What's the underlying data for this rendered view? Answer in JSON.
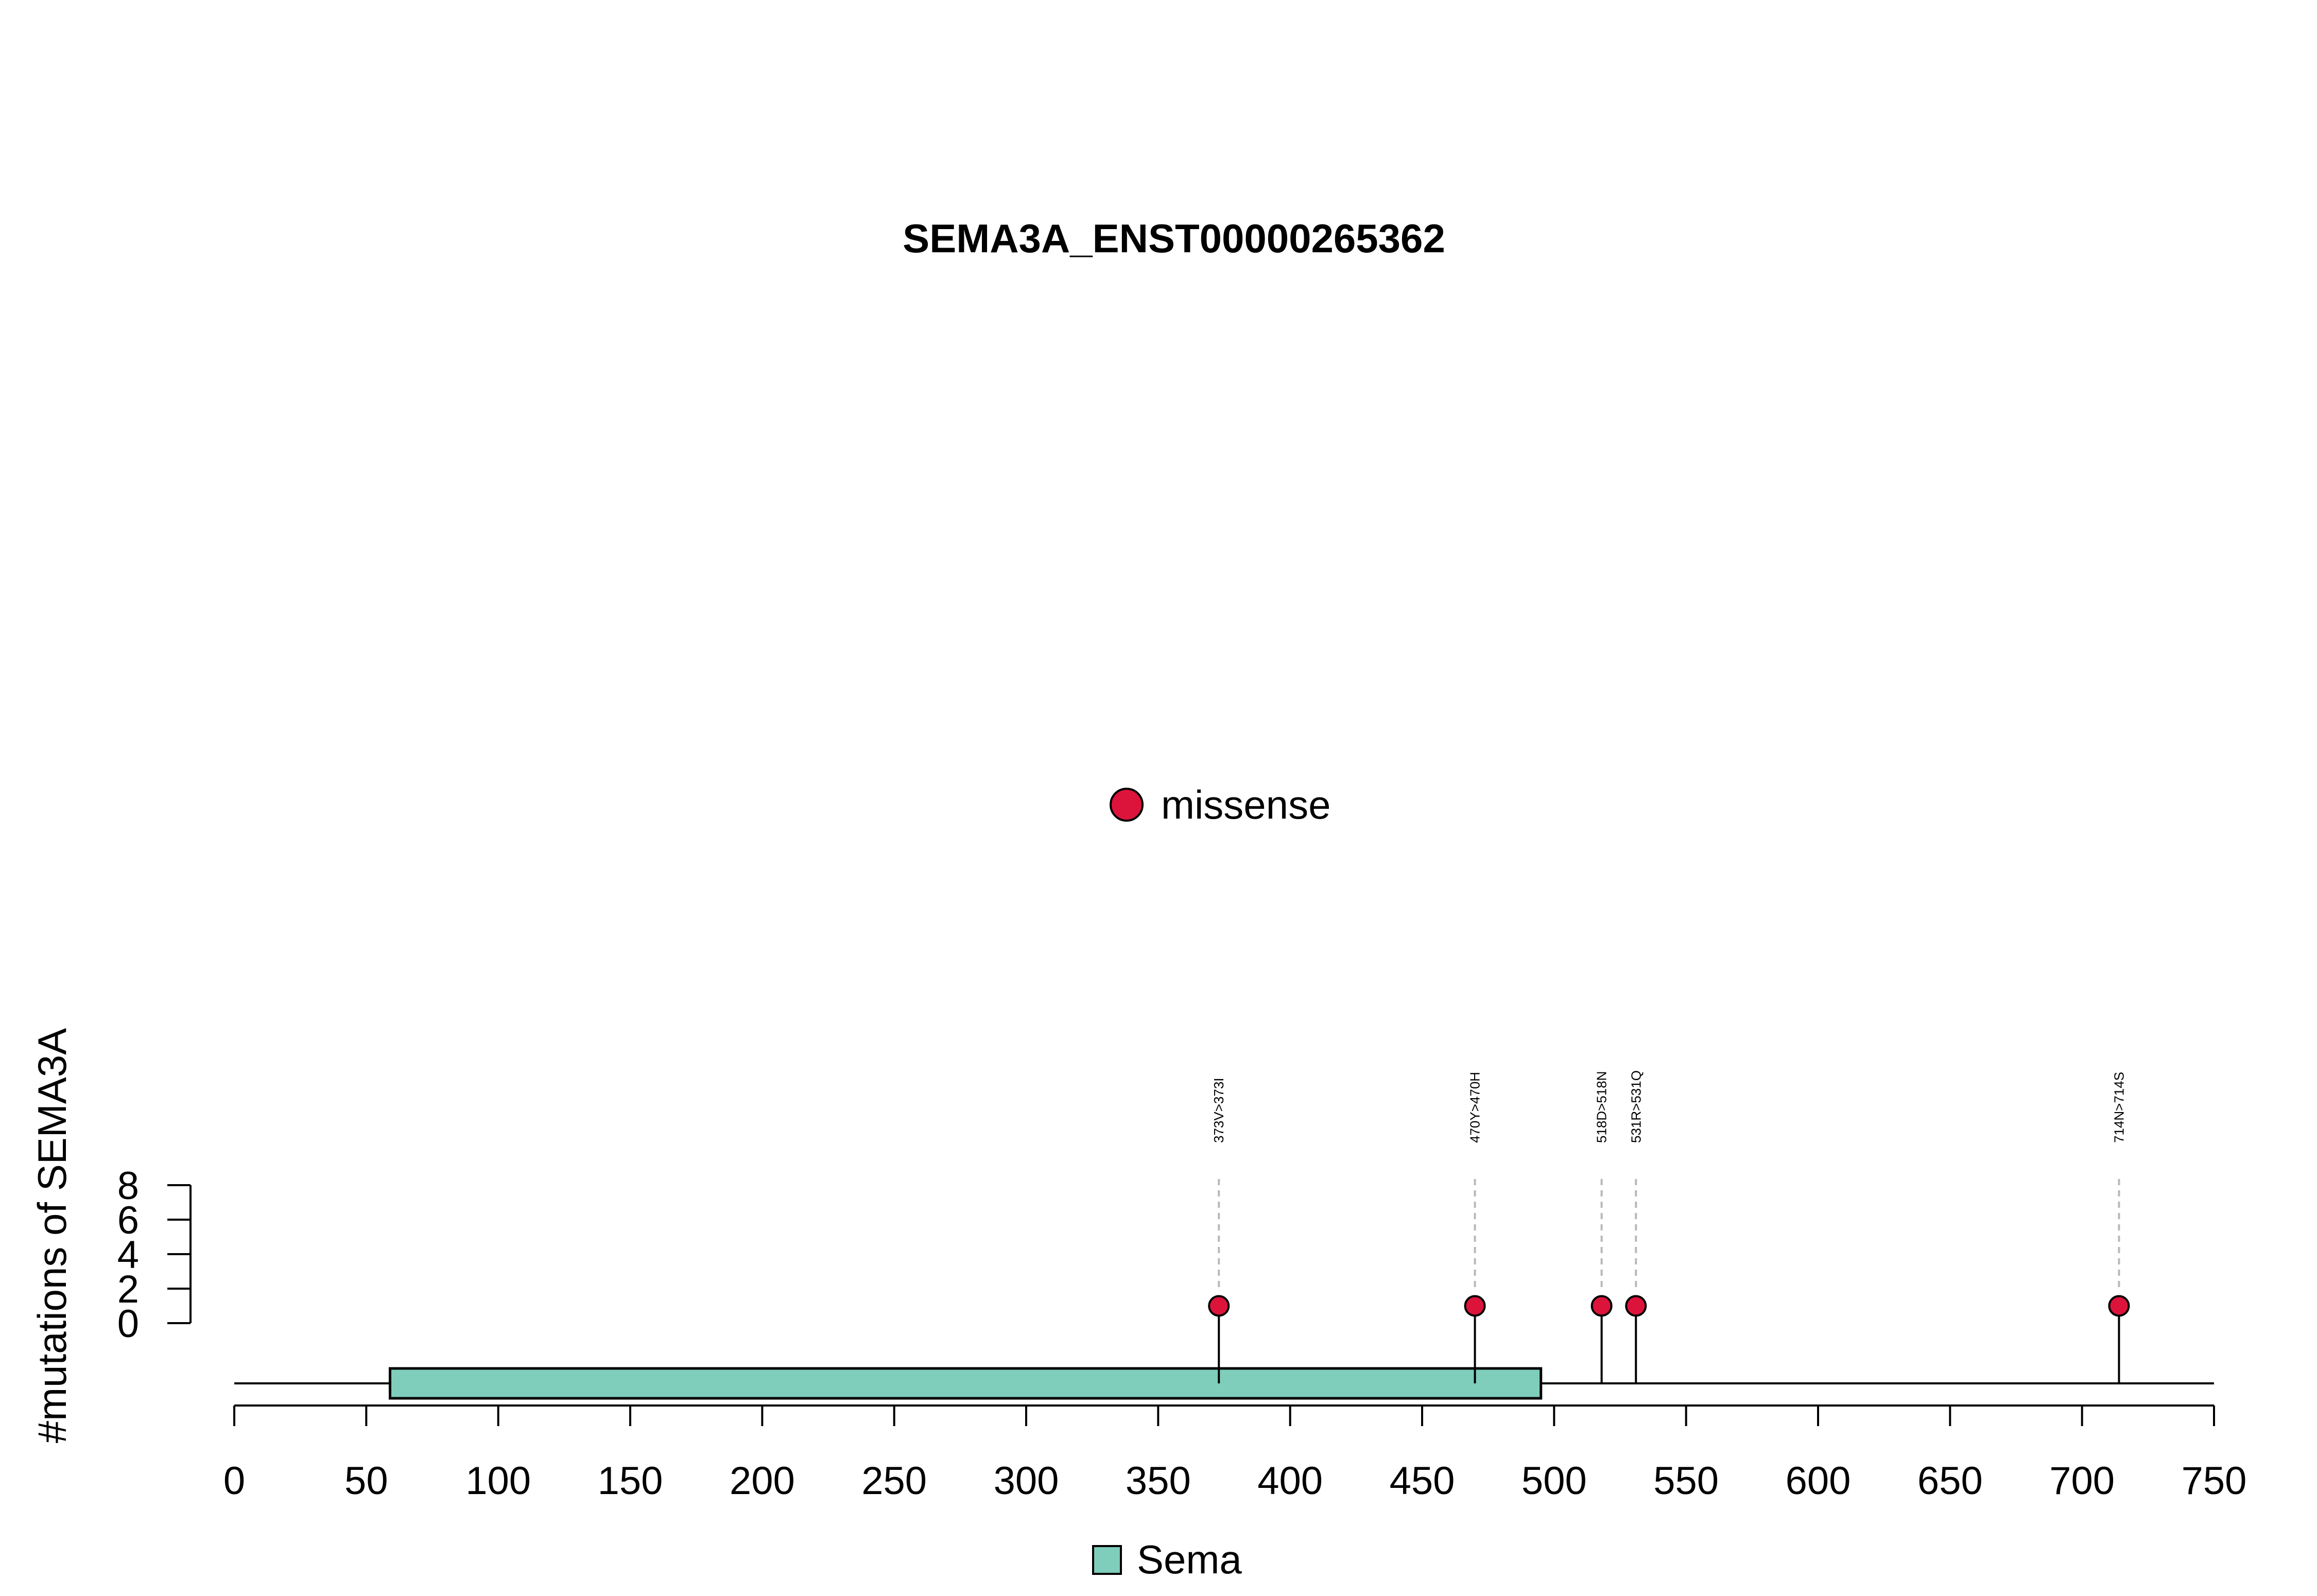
{
  "chart_data": {
    "type": "lollipop",
    "title": "SEMA3A_ENST00000265362",
    "ylabel": "#mutations of SEMA3A",
    "xlabel": "",
    "xlim": [
      0,
      750
    ],
    "x_ticks": [
      0,
      50,
      100,
      150,
      200,
      250,
      300,
      350,
      400,
      450,
      500,
      550,
      600,
      650,
      700,
      750
    ],
    "ylim": [
      0,
      8
    ],
    "y_ticks": [
      0,
      2,
      4,
      6,
      8
    ],
    "mutations": [
      {
        "position": 373,
        "count": 1,
        "label": "373V>373I",
        "type": "missense"
      },
      {
        "position": 470,
        "count": 1,
        "label": "470Y>470H",
        "type": "missense"
      },
      {
        "position": 518,
        "count": 1,
        "label": "518D>518N",
        "type": "missense"
      },
      {
        "position": 531,
        "count": 1,
        "label": "531R>531Q",
        "type": "missense"
      },
      {
        "position": 714,
        "count": 1,
        "label": "714N>714S",
        "type": "missense"
      }
    ],
    "domains": [
      {
        "name": "Sema",
        "start": 59,
        "end": 495,
        "color": "#7fcdbb"
      }
    ],
    "mutation_legend": [
      {
        "label": "missense",
        "color": "#dc143c"
      }
    ],
    "domain_legend": [
      {
        "label": "Sema",
        "color": "#7fcdbb"
      }
    ],
    "grid": false,
    "legend_placement": "top-center"
  }
}
